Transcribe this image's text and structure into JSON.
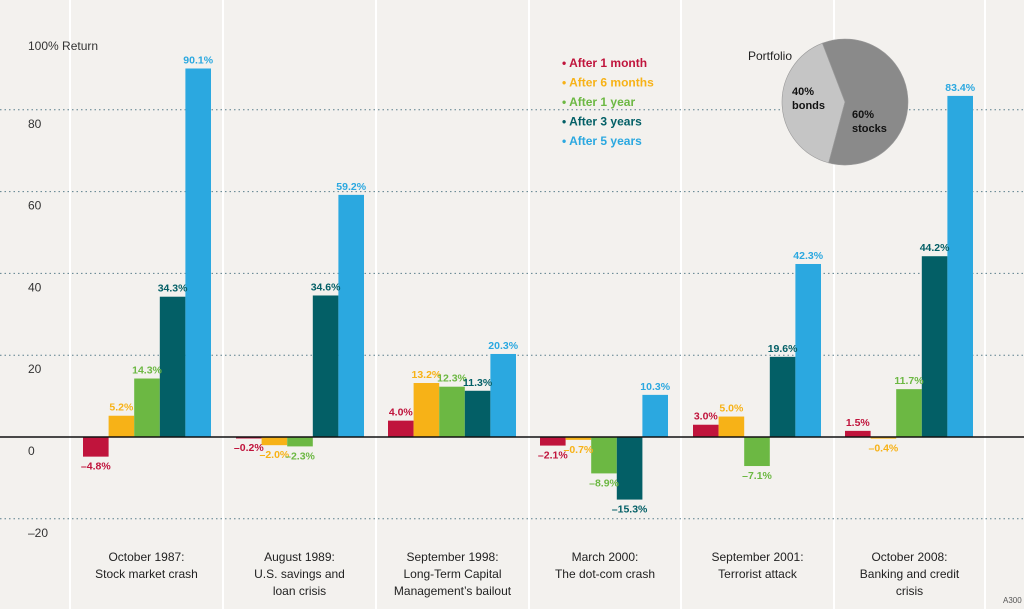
{
  "chart_data": {
    "type": "bar",
    "ylabel": "100% Return",
    "ylim": [
      -25,
      100
    ],
    "y_ticks": [
      {
        "value": 80,
        "label": "80"
      },
      {
        "value": 60,
        "label": "60"
      },
      {
        "value": 40,
        "label": "40"
      },
      {
        "value": 20,
        "label": "20"
      },
      {
        "value": 0,
        "label": "0"
      },
      {
        "value": -20,
        "label": "–20"
      }
    ],
    "grid": true,
    "categories": [
      {
        "line1": "October 1987:",
        "line2": "Stock market crash",
        "line3": ""
      },
      {
        "line1": "August 1989:",
        "line2": "U.S. savings and",
        "line3": "loan crisis"
      },
      {
        "line1": "September 1998:",
        "line2": "Long-Term Capital",
        "line3": "Management’s bailout"
      },
      {
        "line1": "March 2000:",
        "line2": "The dot-com crash",
        "line3": ""
      },
      {
        "line1": "September 2001:",
        "line2": "Terrorist attack",
        "line3": ""
      },
      {
        "line1": "October 2008:",
        "line2": "Banking and credit",
        "line3": "crisis"
      }
    ],
    "series": [
      {
        "name": "After 1 month",
        "color": "#c0143c",
        "values": [
          -4.8,
          -0.2,
          4.0,
          -2.1,
          3.0,
          1.5
        ],
        "labels": [
          "–4.8%",
          "–0.2%",
          "4.0%",
          "–2.1%",
          "3.0%",
          "1.5%"
        ]
      },
      {
        "name": "After 6 months",
        "color": "#f7b217",
        "values": [
          5.2,
          -2.0,
          13.2,
          -0.7,
          5.0,
          -0.4
        ],
        "labels": [
          "5.2%",
          "–2.0%",
          "13.2%",
          "–0.7%",
          "5.0%",
          "–0.4%"
        ]
      },
      {
        "name": "After 1 year",
        "color": "#6cb843",
        "values": [
          14.3,
          -2.3,
          12.3,
          -8.9,
          -7.1,
          11.7
        ],
        "labels": [
          "14.3%",
          "–2.3%",
          "12.3%",
          "–8.9%",
          "–7.1%",
          "11.7%"
        ]
      },
      {
        "name": "After 3 years",
        "color": "#035f66",
        "values": [
          34.3,
          34.6,
          11.3,
          -15.3,
          19.6,
          44.2
        ],
        "labels": [
          "34.3%",
          "34.6%",
          "11.3%",
          "–15.3%",
          "19.6%",
          "44.2%"
        ]
      },
      {
        "name": "After 5 years",
        "color": "#2ba8e0",
        "values": [
          90.1,
          59.2,
          20.3,
          10.3,
          42.3,
          83.4
        ],
        "labels": [
          "90.1%",
          "59.2%",
          "20.3%",
          "10.3%",
          "42.3%",
          "83.4%"
        ]
      }
    ],
    "legend_position": "top-right",
    "inset_pie": {
      "title": "Portfolio",
      "slices": [
        {
          "name": "bonds",
          "value": 40,
          "label_pct": "40%",
          "label_name": "bonds",
          "color": "#c5c5c5"
        },
        {
          "name": "stocks",
          "value": 60,
          "label_pct": "60%",
          "label_name": "stocks",
          "color": "#8a8a8a"
        }
      ]
    },
    "corner_code": "A300"
  }
}
